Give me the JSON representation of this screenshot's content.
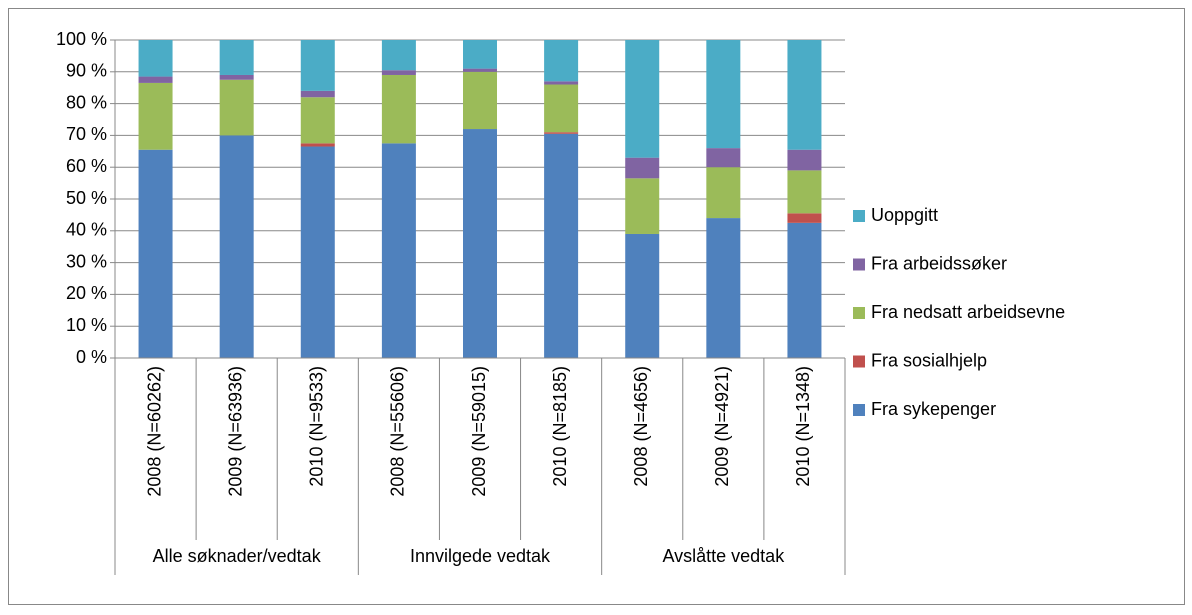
{
  "chart_data": {
    "type": "stacked_bar",
    "categories": [
      "2008 (N=60262)",
      "2009 (N=63936)",
      "2010 (N=9533)",
      "2008 (N=55606)",
      "2009 (N=59015)",
      "2010 (N=8185)",
      "2008 (N=4656)",
      "2009 (N=4921)",
      "2010 (N=1348)"
    ],
    "groups": [
      {
        "label": "Alle søknader/vedtak",
        "size": 3
      },
      {
        "label": "Innvilgede vedtak",
        "size": 3
      },
      {
        "label": "Avslåtte vedtak",
        "size": 3
      }
    ],
    "series": [
      {
        "name": "Fra sykepenger",
        "color": "#4f81bd",
        "values": [
          65.5,
          70,
          66.5,
          67.5,
          72,
          70.5,
          39,
          44,
          42.5
        ]
      },
      {
        "name": "Fra sosialhjelp",
        "color": "#c0504d",
        "values": [
          0,
          0,
          1,
          0,
          0,
          0.5,
          0,
          0,
          3
        ]
      },
      {
        "name": "Fra nedsatt arbeidsevne",
        "color": "#9bbb59",
        "values": [
          21,
          17.5,
          14.5,
          21.5,
          18,
          15,
          17.5,
          16,
          13.5
        ]
      },
      {
        "name": "Fra arbeidssøker",
        "color": "#8064a2",
        "values": [
          2,
          1.5,
          2,
          1.5,
          1,
          1,
          6.5,
          6,
          6.5
        ]
      },
      {
        "name": "Uoppgitt",
        "color": "#4bacc6",
        "values": [
          11.5,
          11,
          16,
          9.5,
          9,
          13,
          37,
          34,
          34.5
        ]
      }
    ],
    "ylim": [
      0,
      100
    ],
    "yticks": [
      {
        "value": 0,
        "label": "0 %"
      },
      {
        "value": 10,
        "label": "10 %"
      },
      {
        "value": 20,
        "label": "20 %"
      },
      {
        "value": 30,
        "label": "30 %"
      },
      {
        "value": 40,
        "label": "40 %"
      },
      {
        "value": 50,
        "label": "50 %"
      },
      {
        "value": 60,
        "label": "60 %"
      },
      {
        "value": 70,
        "label": "70 %"
      },
      {
        "value": 80,
        "label": "80 %"
      },
      {
        "value": 90,
        "label": "90 %"
      },
      {
        "value": 100,
        "label": "100 %"
      }
    ],
    "grid": true,
    "legend": "right"
  }
}
